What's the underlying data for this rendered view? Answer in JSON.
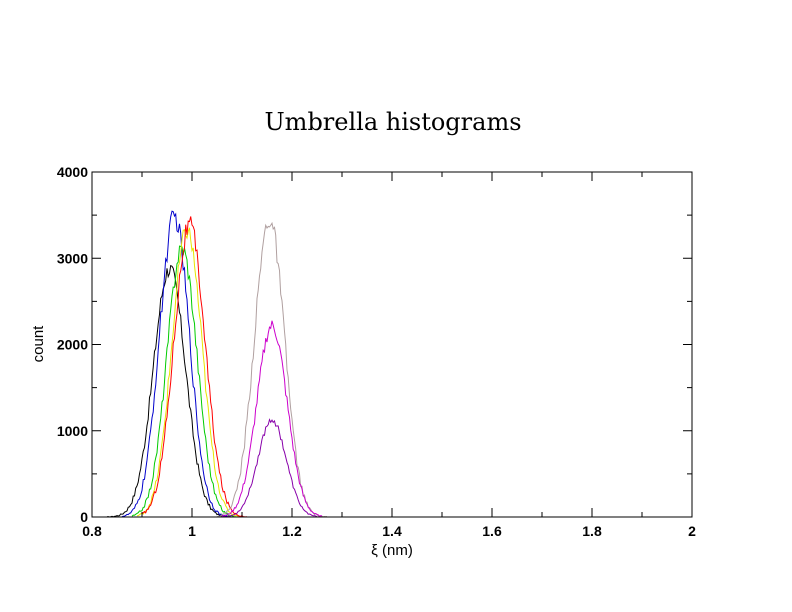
{
  "chart_data": {
    "type": "line",
    "title": "Umbrella histograms",
    "xlabel": "ξ (nm)",
    "ylabel": "count",
    "xlim": [
      0.8,
      2.0
    ],
    "ylim": [
      0,
      4000
    ],
    "x_ticks": [
      0.8,
      1.0,
      1.2,
      1.4,
      1.6,
      1.8,
      2.0
    ],
    "x_tick_labels": [
      "0.8",
      "1",
      "1.2",
      "1.4",
      "1.6",
      "1.8",
      "2"
    ],
    "y_ticks": [
      0,
      1000,
      2000,
      3000,
      4000
    ],
    "y_tick_labels": [
      "0",
      "1000",
      "2000",
      "3000",
      "4000"
    ],
    "grid": false,
    "legend": "none",
    "series": [
      {
        "color": "#000000",
        "mean": 0.955,
        "sigma": 0.032,
        "peak": 2880,
        "xmin": 0.83,
        "xmax": 1.09
      },
      {
        "color": "#0000cc",
        "mean": 0.965,
        "sigma": 0.03,
        "peak": 3480,
        "xmin": 0.86,
        "xmax": 1.08
      },
      {
        "color": "#00cc00",
        "mean": 0.98,
        "sigma": 0.03,
        "peak": 3120,
        "xmin": 0.88,
        "xmax": 1.09
      },
      {
        "color": "#e6e600",
        "mean": 0.99,
        "sigma": 0.03,
        "peak": 3320,
        "xmin": 0.89,
        "xmax": 1.1
      },
      {
        "color": "#ff0000",
        "mean": 0.995,
        "sigma": 0.031,
        "peak": 3380,
        "xmin": 0.9,
        "xmax": 1.11
      },
      {
        "color": "#b0a0a0",
        "mean": 1.155,
        "sigma": 0.03,
        "peak": 3450,
        "xmin": 1.05,
        "xmax": 1.27
      },
      {
        "color": "#cc00cc",
        "mean": 1.16,
        "sigma": 0.03,
        "peak": 2220,
        "xmin": 1.06,
        "xmax": 1.26
      },
      {
        "color": "#8800aa",
        "mean": 1.16,
        "sigma": 0.028,
        "peak": 1130,
        "xmin": 1.07,
        "xmax": 1.25
      }
    ]
  }
}
